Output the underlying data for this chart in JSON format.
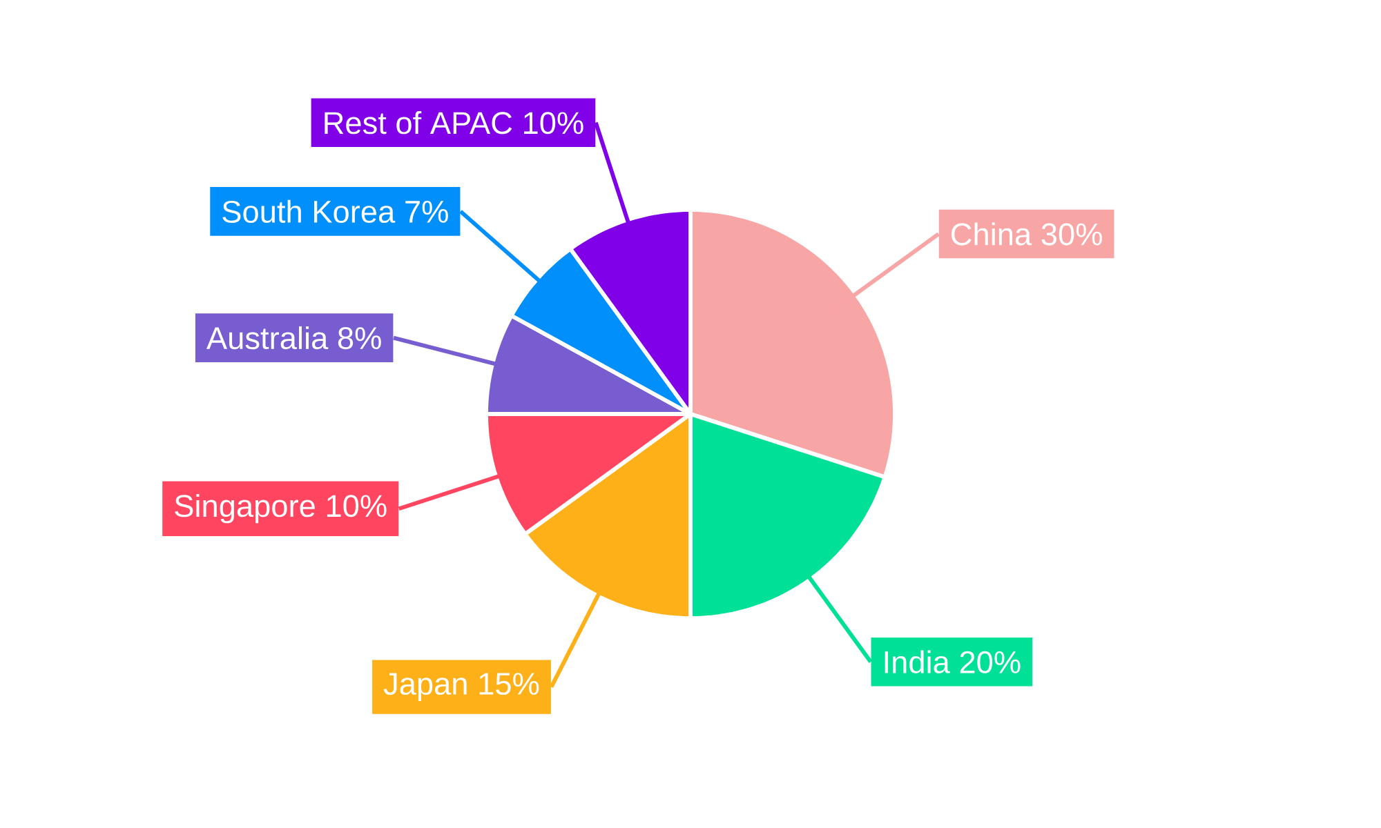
{
  "chart_data": {
    "type": "pie",
    "categories": [
      "China",
      "India",
      "Japan",
      "Singapore",
      "Australia",
      "South Korea",
      "Rest of APAC"
    ],
    "values": [
      30,
      20,
      15,
      10,
      8,
      7,
      10
    ],
    "value_labels": [
      "30%",
      "20%",
      "15%",
      "10%",
      "8%",
      "7%",
      "10%"
    ],
    "colors": [
      "#f8a5a6",
      "#00e096",
      "#feb019",
      "#ff4560",
      "#775dd0",
      "#008ffb",
      "#8000e8"
    ]
  }
}
